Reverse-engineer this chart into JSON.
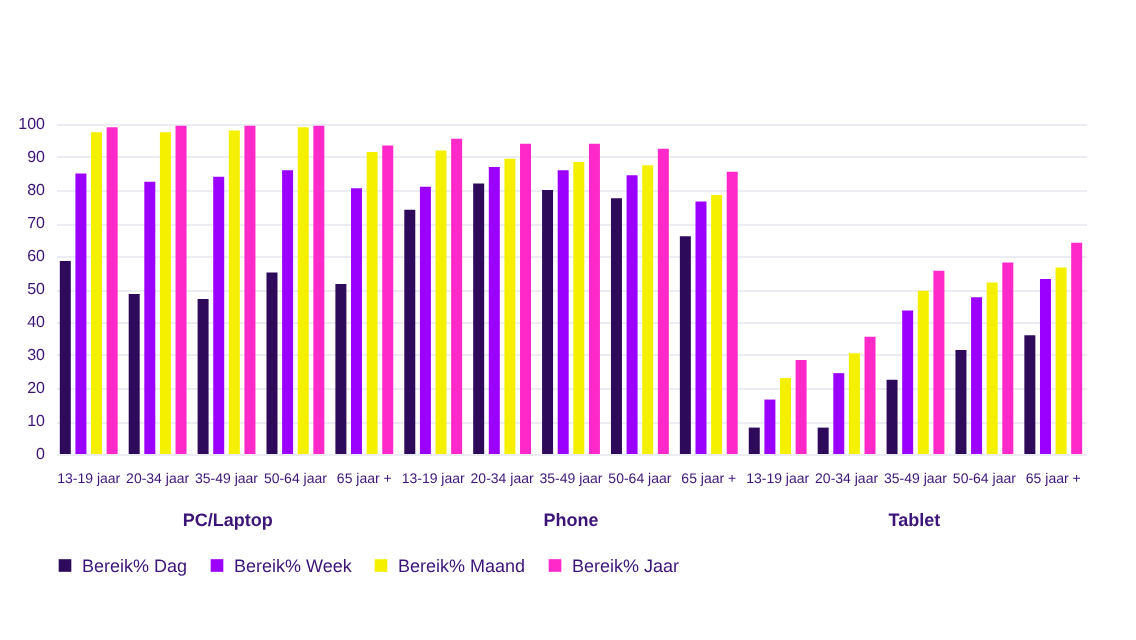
{
  "chart_data": {
    "type": "bar",
    "categories": [
      "13-19 jaar",
      "20-34 jaar",
      "35-49 jaar",
      "50-64 jaar",
      "65 jaar +",
      "13-19 jaar",
      "20-34 jaar",
      "35-49 jaar",
      "50-64 jaar",
      "65 jaar +",
      "13-19 jaar",
      "20-34 jaar",
      "35-49 jaar",
      "50-64 jaar",
      "65 jaar +"
    ],
    "series": [
      {
        "name": "Bereik% Dag",
        "color": "#2d0a5a",
        "values": [
          58.5,
          48.5,
          47,
          55,
          51.5,
          74,
          82,
          80,
          77.5,
          66,
          8,
          8,
          22.5,
          31.5,
          36
        ]
      },
      {
        "name": "Bereik% Week",
        "color": "#9b00ff",
        "values": [
          85,
          82.5,
          84,
          86,
          80.5,
          81,
          87,
          86,
          84.5,
          76.5,
          16.5,
          24.5,
          43.5,
          47.5,
          53
        ]
      },
      {
        "name": "Bereik% Maand",
        "color": "#f5f000",
        "values": [
          97.5,
          97.5,
          98,
          99,
          91.5,
          92,
          89.5,
          88.5,
          87.5,
          78.5,
          23,
          30.5,
          49.5,
          52,
          56.5
        ]
      },
      {
        "name": "Bereik% Jaar",
        "color": "#ff28c8",
        "values": [
          99,
          99.5,
          99.5,
          99.5,
          93.5,
          95.5,
          94,
          94,
          92.5,
          85.5,
          28.5,
          35.5,
          55.5,
          58,
          64
        ]
      }
    ],
    "annotations": [
      "PC/Laptop",
      "Phone",
      "Tablet"
    ],
    "ylim": [
      0,
      100
    ],
    "yticks": [
      0,
      10,
      20,
      30,
      40,
      50,
      60,
      70,
      80,
      90,
      100
    ],
    "grid": "y",
    "legend": "bottom"
  }
}
